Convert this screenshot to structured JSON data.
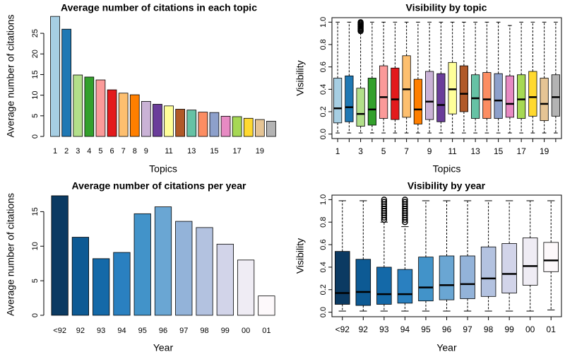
{
  "chart_data": [
    {
      "type": "bar",
      "title": "Average number of citations in each topic",
      "xlabel": "Topics",
      "ylabel": "Average number of citations",
      "categories": [
        "1",
        "2",
        "3",
        "4",
        "5",
        "6",
        "7",
        "8",
        "9",
        null,
        "11",
        null,
        "13",
        null,
        "15",
        null,
        "17",
        null,
        "19",
        null
      ],
      "values": [
        29.1,
        26.0,
        14.9,
        14.4,
        13.7,
        11.3,
        10.5,
        10.1,
        8.5,
        7.8,
        7.4,
        6.6,
        6.4,
        5.9,
        5.8,
        4.9,
        4.8,
        4.4,
        4.1,
        3.7
      ],
      "colors": [
        "#a6cee3",
        "#1f78b4",
        "#b2df8a",
        "#33a02c",
        "#fb9a99",
        "#e31a1c",
        "#fdbf6f",
        "#ff7f00",
        "#cab2d6",
        "#6a3d9a",
        "#ffff99",
        "#b15928",
        "#66c2a5",
        "#fc8d62",
        "#8da0cb",
        "#e78ac3",
        "#a6d854",
        "#ffd92f",
        "#e5c494",
        "#b3b3b3"
      ],
      "ylim": [
        0,
        29.3
      ],
      "yticks": [
        0,
        5,
        10,
        15,
        20,
        25
      ]
    },
    {
      "type": "box",
      "title": "Visibility by topic",
      "xlabel": "Topics",
      "ylabel": "Visibility",
      "categories": [
        "1",
        null,
        "3",
        null,
        "5",
        null,
        "7",
        null,
        "9",
        null,
        "11",
        null,
        "13",
        null,
        "15",
        null,
        "17",
        null,
        "19",
        null
      ],
      "boxes": [
        {
          "low": 0.01,
          "q1": 0.1,
          "median": 0.23,
          "q3": 0.5,
          "high": 1.0
        },
        {
          "low": 0.01,
          "q1": 0.11,
          "median": 0.24,
          "q3": 0.52,
          "high": 1.0
        },
        {
          "low": 0.01,
          "q1": 0.07,
          "median": 0.18,
          "q3": 0.41,
          "high": 0.9,
          "outliers": [
            0.92,
            0.93,
            0.94,
            0.95,
            0.96,
            0.97,
            0.98,
            0.99,
            1.0
          ]
        },
        {
          "low": 0.01,
          "q1": 0.08,
          "median": 0.22,
          "q3": 0.5,
          "high": 1.0
        },
        {
          "low": 0.01,
          "q1": 0.14,
          "median": 0.33,
          "q3": 0.61,
          "high": 1.0
        },
        {
          "low": 0.01,
          "q1": 0.13,
          "median": 0.31,
          "q3": 0.59,
          "high": 1.0
        },
        {
          "low": 0.01,
          "q1": 0.15,
          "median": 0.4,
          "q3": 0.7,
          "high": 1.0
        },
        {
          "low": 0.01,
          "q1": 0.09,
          "median": 0.22,
          "q3": 0.49,
          "high": 1.0
        },
        {
          "low": 0.01,
          "q1": 0.13,
          "median": 0.29,
          "q3": 0.56,
          "high": 1.0
        },
        {
          "low": 0.01,
          "q1": 0.11,
          "median": 0.26,
          "q3": 0.54,
          "high": 1.0
        },
        {
          "low": 0.01,
          "q1": 0.18,
          "median": 0.4,
          "q3": 0.64,
          "high": 1.0
        },
        {
          "low": 0.01,
          "q1": 0.2,
          "median": 0.36,
          "q3": 0.61,
          "high": 1.0
        },
        {
          "low": 0.01,
          "q1": 0.14,
          "median": 0.32,
          "q3": 0.53,
          "high": 1.0
        },
        {
          "low": 0.01,
          "q1": 0.14,
          "median": 0.31,
          "q3": 0.55,
          "high": 1.0
        },
        {
          "low": 0.01,
          "q1": 0.14,
          "median": 0.3,
          "q3": 0.54,
          "high": 1.0
        },
        {
          "low": 0.01,
          "q1": 0.15,
          "median": 0.27,
          "q3": 0.52,
          "high": 0.97
        },
        {
          "low": 0.01,
          "q1": 0.14,
          "median": 0.31,
          "q3": 0.53,
          "high": 1.0
        },
        {
          "low": 0.01,
          "q1": 0.16,
          "median": 0.33,
          "q3": 0.56,
          "high": 1.0
        },
        {
          "low": 0.01,
          "q1": 0.12,
          "median": 0.27,
          "q3": 0.5,
          "high": 1.0
        },
        {
          "low": 0.01,
          "q1": 0.16,
          "median": 0.33,
          "q3": 0.53,
          "high": 1.0
        }
      ],
      "colors": [
        "#a6cee3",
        "#1f78b4",
        "#b2df8a",
        "#33a02c",
        "#fb9a99",
        "#e31a1c",
        "#fdbf6f",
        "#ff7f00",
        "#cab2d6",
        "#6a3d9a",
        "#ffff99",
        "#b15928",
        "#66c2a5",
        "#fc8d62",
        "#8da0cb",
        "#e78ac3",
        "#a6d854",
        "#ffd92f",
        "#e5c494",
        "#b3b3b3"
      ],
      "ylim": [
        -0.04,
        1.04
      ],
      "yticks": [
        {
          "value": 0,
          "label": "0.0"
        },
        {
          "value": 0.2,
          "label": "0.2"
        },
        {
          "value": 0.4,
          "label": "0.4"
        },
        {
          "value": 0.6,
          "label": "0.6"
        },
        {
          "value": 0.8,
          "label": "0.8"
        },
        {
          "value": 1,
          "label": "1.0"
        }
      ]
    },
    {
      "type": "bar",
      "title": "Average number of citations per year",
      "xlabel": "Year",
      "ylabel": "Average number of citations",
      "categories": [
        "<92",
        "92",
        "93",
        "94",
        "95",
        "96",
        "97",
        "98",
        "99",
        "00",
        "01"
      ],
      "values": [
        17.3,
        11.3,
        8.2,
        9.1,
        14.7,
        15.7,
        13.6,
        12.7,
        10.3,
        8.0,
        2.8
      ],
      "colors": [
        "#0b3a62",
        "#0d5a94",
        "#1469a8",
        "#2a80c0",
        "#4293c9",
        "#6aa6d3",
        "#93b3d9",
        "#b3c2e0",
        "#d2d4e9",
        "#efecf4",
        "#fdf9fb"
      ],
      "ylim": [
        0,
        17.6
      ],
      "yticks": [
        0,
        5,
        10,
        15
      ]
    },
    {
      "type": "box",
      "title": "Visibility by year",
      "xlabel": "Year",
      "ylabel": "Visibility",
      "categories": [
        "<92",
        "92",
        "93",
        "94",
        "95",
        "96",
        "97",
        "98",
        "99",
        "00",
        "01"
      ],
      "boxes": [
        {
          "low": 0.01,
          "q1": 0.07,
          "median": 0.17,
          "q3": 0.54,
          "high": 0.99
        },
        {
          "low": 0.01,
          "q1": 0.06,
          "median": 0.18,
          "q3": 0.47,
          "high": 0.99
        },
        {
          "low": 0.01,
          "q1": 0.07,
          "median": 0.16,
          "q3": 0.4,
          "high": 0.8,
          "outliers": [
            0.82,
            0.84,
            0.86,
            0.88,
            0.9,
            0.92,
            0.94,
            0.96,
            0.98,
            1.0
          ]
        },
        {
          "low": 0.01,
          "q1": 0.08,
          "median": 0.16,
          "q3": 0.38,
          "high": 0.76,
          "outliers": [
            0.8,
            0.82,
            0.84,
            0.86,
            0.88,
            0.9,
            0.92,
            0.94,
            0.96,
            0.98,
            1.0
          ]
        },
        {
          "low": 0.01,
          "q1": 0.1,
          "median": 0.22,
          "q3": 0.49,
          "high": 0.99
        },
        {
          "low": 0.01,
          "q1": 0.11,
          "median": 0.24,
          "q3": 0.5,
          "high": 0.99
        },
        {
          "low": 0.01,
          "q1": 0.12,
          "median": 0.25,
          "q3": 0.5,
          "high": 0.99
        },
        {
          "low": 0.01,
          "q1": 0.14,
          "median": 0.3,
          "q3": 0.58,
          "high": 0.99
        },
        {
          "low": 0.01,
          "q1": 0.17,
          "median": 0.34,
          "q3": 0.61,
          "high": 0.99
        },
        {
          "low": 0.01,
          "q1": 0.24,
          "median": 0.41,
          "q3": 0.66,
          "high": 0.99
        },
        {
          "low": 0.02,
          "q1": 0.36,
          "median": 0.46,
          "q3": 0.62,
          "high": 0.99
        }
      ],
      "colors": [
        "#0b3a62",
        "#0d5a94",
        "#1469a8",
        "#2a80c0",
        "#4293c9",
        "#6aa6d3",
        "#93b3d9",
        "#b3c2e0",
        "#d2d4e9",
        "#efecf4",
        "#fdf9fb"
      ],
      "ylim": [
        -0.04,
        1.04
      ],
      "yticks": [
        {
          "value": 0,
          "label": "0.0"
        },
        {
          "value": 0.2,
          "label": "0.2"
        },
        {
          "value": 0.4,
          "label": "0.4"
        },
        {
          "value": 0.6,
          "label": "0.6"
        },
        {
          "value": 0.8,
          "label": "0.8"
        },
        {
          "value": 1,
          "label": "1.0"
        }
      ]
    }
  ]
}
